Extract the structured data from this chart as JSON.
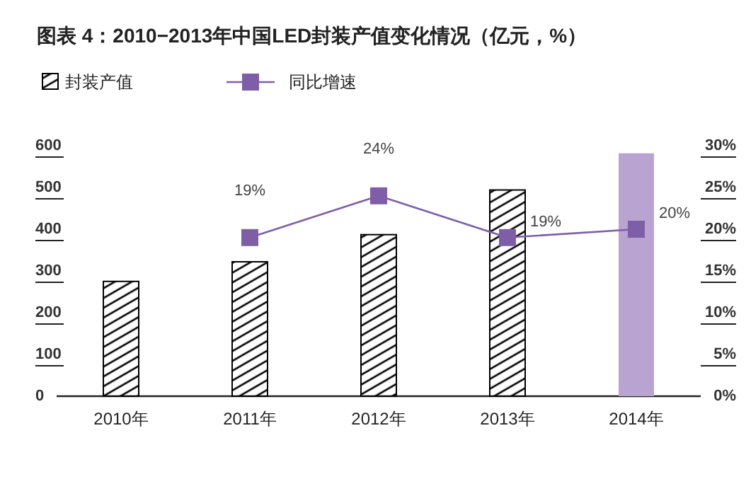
{
  "chart_data": {
    "type": "bar",
    "title": "图表 4：2010−2013年中国LED封装产值变化情况（亿元，%）",
    "categories": [
      "2010年",
      "2011年",
      "2012年",
      "2013年",
      "2014年"
    ],
    "series": [
      {
        "name": "封装产值",
        "color": "#000000",
        "colors": [
          "#000000",
          "#000000",
          "#000000",
          "#000000",
          "#b9a3d0"
        ],
        "values": [
          275,
          322,
          387,
          494,
          582
        ]
      },
      {
        "name": "同比增速",
        "type": "line",
        "axis": "y2",
        "color": "#7f5ea8",
        "marker": "square",
        "values": [
          null,
          19,
          24,
          19,
          20
        ],
        "value_labels": [
          null,
          "19%",
          "24%",
          "19%",
          "20%"
        ]
      }
    ],
    "ylim": [
      0,
      600
    ],
    "yticks": [
      0,
      100,
      200,
      300,
      400,
      500,
      600
    ],
    "y2lim": [
      0,
      30
    ],
    "y2ticks": [
      {
        "value": 0,
        "label": "0%"
      },
      {
        "value": 5,
        "label": "5%"
      },
      {
        "value": 10,
        "label": "10%"
      },
      {
        "value": 15,
        "label": "15%"
      },
      {
        "value": 20,
        "label": "20%"
      },
      {
        "value": 25,
        "label": "25%"
      },
      {
        "value": 30,
        "label": "30%"
      }
    ],
    "legend": "top left",
    "grid": false
  }
}
